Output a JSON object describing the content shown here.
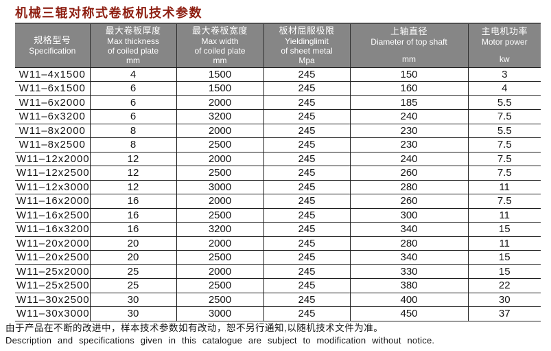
{
  "title": "机械三辊对称式卷板机技术参数",
  "table": {
    "columns": [
      {
        "zh": "规格型号",
        "en": "Specification",
        "en2": "",
        "unit": ""
      },
      {
        "zh": "最大卷板厚度",
        "en": "Max thickness",
        "en2": "of coiled plate",
        "unit": "mm"
      },
      {
        "zh": "最大卷板宽度",
        "en": "Max width",
        "en2": "of coiled plate",
        "unit": "mm"
      },
      {
        "zh": "板材屈服极限",
        "en": "Yieldinglimit",
        "en2": "of sheet metal",
        "unit": "Mpa"
      },
      {
        "zh": "上轴直径",
        "en": "Diameter of top shaft",
        "en2": "",
        "unit": "mm"
      },
      {
        "zh": "主电机功率",
        "en": "Motor power",
        "en2": "",
        "unit": "kw"
      }
    ],
    "rows": [
      [
        "W11–4x1500",
        "4",
        "1500",
        "245",
        "150",
        "3"
      ],
      [
        "W11–6x1500",
        "6",
        "1500",
        "245",
        "160",
        "4"
      ],
      [
        "W11–6x2000",
        "6",
        "2000",
        "245",
        "185",
        "5.5"
      ],
      [
        "W11–6x3200",
        "6",
        "3200",
        "245",
        "240",
        "7.5"
      ],
      [
        "W11–8x2000",
        "8",
        "2000",
        "245",
        "230",
        "5.5"
      ],
      [
        "W11–8x2500",
        "8",
        "2500",
        "245",
        "230",
        "7.5"
      ],
      [
        "W11–12x2000",
        "12",
        "2000",
        "245",
        "240",
        "7.5"
      ],
      [
        "W11–12x2500",
        "12",
        "2500",
        "245",
        "260",
        "7.5"
      ],
      [
        "W11–12x3000",
        "12",
        "3000",
        "245",
        "280",
        "11"
      ],
      [
        "W11–16x2000",
        "16",
        "2000",
        "245",
        "260",
        "7.5"
      ],
      [
        "W11–16x2500",
        "16",
        "2500",
        "245",
        "300",
        "11"
      ],
      [
        "W11–16x3200",
        "16",
        "3200",
        "245",
        "340",
        "15"
      ],
      [
        "W11–20x2000",
        "20",
        "2000",
        "245",
        "280",
        "11"
      ],
      [
        "W11–20x2500",
        "20",
        "2500",
        "245",
        "340",
        "15"
      ],
      [
        "W11–25x2000",
        "25",
        "2000",
        "245",
        "330",
        "15"
      ],
      [
        "W11–25x2500",
        "25",
        "2500",
        "245",
        "380",
        "22"
      ],
      [
        "W11–30x2500",
        "30",
        "2500",
        "245",
        "400",
        "30"
      ],
      [
        "W11–30x3000",
        "30",
        "3000",
        "245",
        "450",
        "37"
      ]
    ]
  },
  "footer": {
    "zh": "由于产品在不断的改进中，样本技术参数如有改动，恕不另行通知,以随机技术文件为准。",
    "en": "Description and specifications given in this catalogue are subject to modification without notice."
  },
  "colors": {
    "title_red": "#8e1f12",
    "header_bg": "#868686",
    "header_text": "#ffffff",
    "grid_line": "#1c1c1c"
  }
}
